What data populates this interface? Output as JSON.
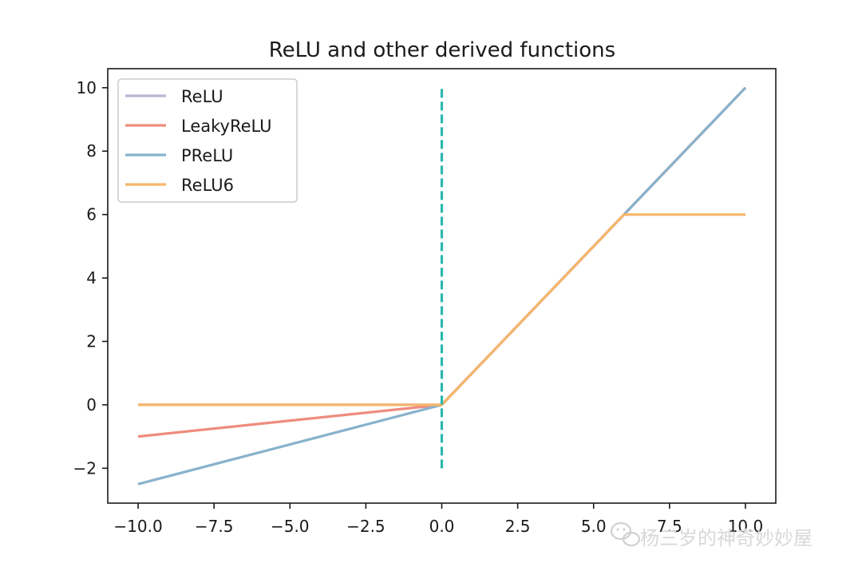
{
  "chart_data": {
    "type": "line",
    "title": "ReLU and other derived functions",
    "xlabel": "",
    "ylabel": "",
    "xlim": [
      -11,
      11
    ],
    "ylim": [
      -3.1,
      10.6
    ],
    "xticks": [
      -10,
      -7.5,
      -5,
      -2.5,
      0,
      2.5,
      5,
      7.5,
      10
    ],
    "xtick_labels": [
      "−10.0",
      "−7.5",
      "−5.0",
      "−2.5",
      "0.0",
      "2.5",
      "5.0",
      "7.5",
      "10.0"
    ],
    "yticks": [
      -2,
      0,
      2,
      4,
      6,
      8,
      10
    ],
    "ytick_labels": [
      "−2",
      "0",
      "2",
      "4",
      "6",
      "8",
      "10"
    ],
    "grid": false,
    "legend_position": "top-left",
    "series": [
      {
        "name": "ReLU",
        "color": "#bdb3d6",
        "x": [
          -10,
          0,
          10
        ],
        "y": [
          0,
          0,
          10
        ]
      },
      {
        "name": "LeakyReLU",
        "color": "#ef8c7e",
        "x": [
          -10,
          0,
          10
        ],
        "y": [
          -1,
          0,
          10
        ]
      },
      {
        "name": "PReLU",
        "color": "#88b2cc",
        "x": [
          -10,
          0,
          10
        ],
        "y": [
          -2.5,
          0,
          10
        ]
      },
      {
        "name": "ReLU6",
        "color": "#f7b56a",
        "x": [
          -10,
          0,
          6,
          10
        ],
        "y": [
          0,
          0,
          6,
          6
        ]
      }
    ],
    "annotations": [
      {
        "type": "vline",
        "x": 0,
        "y": [
          -2,
          10
        ],
        "style": "dashed",
        "color": "#2bb7b0"
      }
    ]
  },
  "watermark": {
    "text": "杨三岁的神奇妙妙屋",
    "icon": "wechat-icon"
  }
}
